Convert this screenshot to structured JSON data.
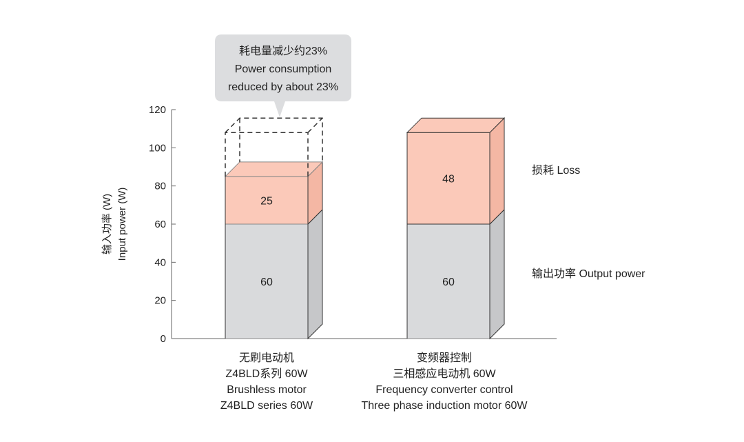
{
  "chart_data": {
    "type": "bar",
    "stacked": true,
    "ylabel_cn": "输入功率 (W)",
    "ylabel_en": "Input power (W)",
    "ylim": [
      0,
      120
    ],
    "yticks": [
      0,
      20,
      40,
      60,
      80,
      100,
      120
    ],
    "grid": false,
    "categories": [
      [
        "无刷电动机",
        "Z4BLD系列 60W",
        "Brushless motor",
        "Z4BLD series 60W"
      ],
      [
        "变频器控制",
        "三相感应电动机 60W",
        "Frequency converter control",
        "Three phase induction motor 60W"
      ]
    ],
    "series": [
      {
        "name": "输出功率 Output power",
        "values": [
          60,
          60
        ],
        "color": "#d9dadc",
        "labels": [
          "60",
          "60"
        ]
      },
      {
        "name": "损耗 Loss",
        "values": [
          25,
          48
        ],
        "color": "#fbc9b9",
        "labels": [
          "25",
          "48"
        ]
      }
    ],
    "legend_placement": "right",
    "annotation": [
      "耗电量减少约23%",
      "Power consumption",
      "reduced by about 23%"
    ],
    "reference_outline_value": 108
  }
}
